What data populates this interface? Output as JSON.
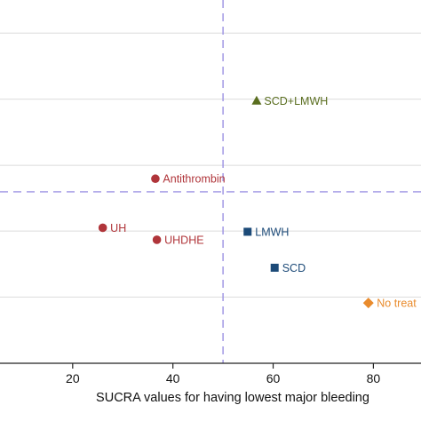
{
  "chart_data": {
    "type": "scatter",
    "title": "",
    "xlabel": "SUCRA values for having lowest major bleeding",
    "ylabel": "",
    "xlim": [
      5.5,
      89.5
    ],
    "ylim": [
      0,
      100
    ],
    "x_ticks": [
      20,
      40,
      60,
      80
    ],
    "x_tick_labels": [
      "20",
      "40",
      "60",
      "80"
    ],
    "y_gridlines": [
      18.2,
      36.4,
      54.5,
      72.7,
      90.9
    ],
    "grid": true,
    "reference_lines": {
      "x": 50,
      "y": 47.2,
      "color": "#9b91e3",
      "dash": true
    },
    "points": [
      {
        "label": "SCD+LMWH",
        "x": 56.7,
        "y": 72.3,
        "marker": "triangle",
        "color": "#5a6e1f"
      },
      {
        "label": "Antithrombin",
        "x": 36.5,
        "y": 50.8,
        "marker": "circle",
        "color": "#b0353a"
      },
      {
        "label": "UH",
        "x": 26.0,
        "y": 37.3,
        "marker": "circle",
        "color": "#b0353a"
      },
      {
        "label": "UHDHE",
        "x": 36.8,
        "y": 34.0,
        "marker": "circle",
        "color": "#b0353a"
      },
      {
        "label": "LMWH",
        "x": 54.9,
        "y": 36.2,
        "marker": "square",
        "color": "#1c4a78"
      },
      {
        "label": "SCD",
        "x": 60.3,
        "y": 26.3,
        "marker": "square",
        "color": "#1c4a78"
      },
      {
        "label": "No treat",
        "x": 79.0,
        "y": 16.6,
        "marker": "diamond",
        "color": "#e98b2c"
      }
    ]
  }
}
